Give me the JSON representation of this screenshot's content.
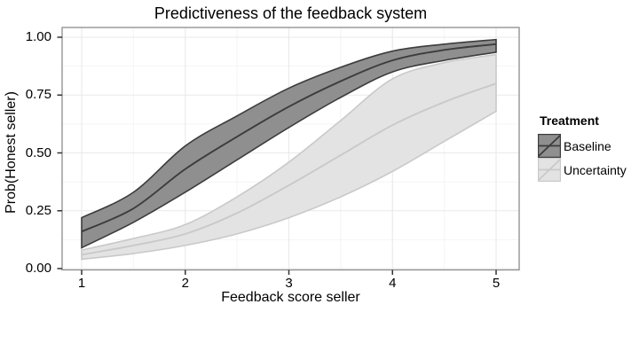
{
  "title": "Predictiveness of the feedback system",
  "x_axis": {
    "label": "Feedback score seller",
    "tick_labels": [
      "1",
      "2",
      "3",
      "4",
      "5"
    ],
    "tick_values": [
      1,
      2,
      3,
      4,
      5
    ]
  },
  "y_axis": {
    "label": "Prob(Honest seller)",
    "tick_labels": [
      "0.00",
      "0.25",
      "0.50",
      "0.75",
      "1.00"
    ],
    "tick_values": [
      0,
      0.25,
      0.5,
      0.75,
      1
    ]
  },
  "legend": {
    "title": "Treatment",
    "items": [
      {
        "label": "Baseline",
        "fill": "#8f8f8f",
        "stroke": "#3c3c3c"
      },
      {
        "label": "Uncertainty",
        "fill": "#e3e3e3",
        "stroke": "#c9c9c9"
      }
    ]
  },
  "colors": {
    "panel_background": "#ffffff",
    "panel_border": "#8c8c8c",
    "grid_major": "#e9e9e9",
    "grid_minor": "#f4f4f4",
    "tick_mark": "#333333",
    "text": "#000000"
  },
  "chart_data": {
    "type": "line",
    "subtype": "logistic fit lines with confidence ribbons",
    "title": "Predictiveness of the feedback system",
    "xlabel": "Feedback score seller",
    "ylabel": "Prob(Honest seller)",
    "xlim": [
      1,
      5
    ],
    "ylim": [
      0,
      1
    ],
    "grid": true,
    "legend_position": "right",
    "x": [
      1,
      1.5,
      2,
      2.5,
      3,
      3.5,
      4,
      4.5,
      5
    ],
    "series": [
      {
        "name": "Baseline",
        "fit": [
          0.16,
          0.26,
          0.43,
          0.57,
          0.7,
          0.81,
          0.9,
          0.945,
          0.97
        ],
        "lower": [
          0.09,
          0.2,
          0.33,
          0.47,
          0.61,
          0.74,
          0.85,
          0.9,
          0.935
        ],
        "upper": [
          0.22,
          0.33,
          0.53,
          0.66,
          0.78,
          0.87,
          0.94,
          0.97,
          0.99
        ],
        "fill": "#8f8f8f",
        "stroke": "#3c3c3c"
      },
      {
        "name": "Uncertainty",
        "fit": [
          0.06,
          0.1,
          0.15,
          0.24,
          0.36,
          0.49,
          0.62,
          0.72,
          0.8
        ],
        "lower": [
          0.04,
          0.065,
          0.1,
          0.15,
          0.22,
          0.31,
          0.42,
          0.55,
          0.68
        ],
        "upper": [
          0.08,
          0.13,
          0.19,
          0.31,
          0.46,
          0.64,
          0.82,
          0.89,
          0.925
        ],
        "fill": "#e3e3e3",
        "stroke": "#c9c9c9"
      }
    ]
  }
}
